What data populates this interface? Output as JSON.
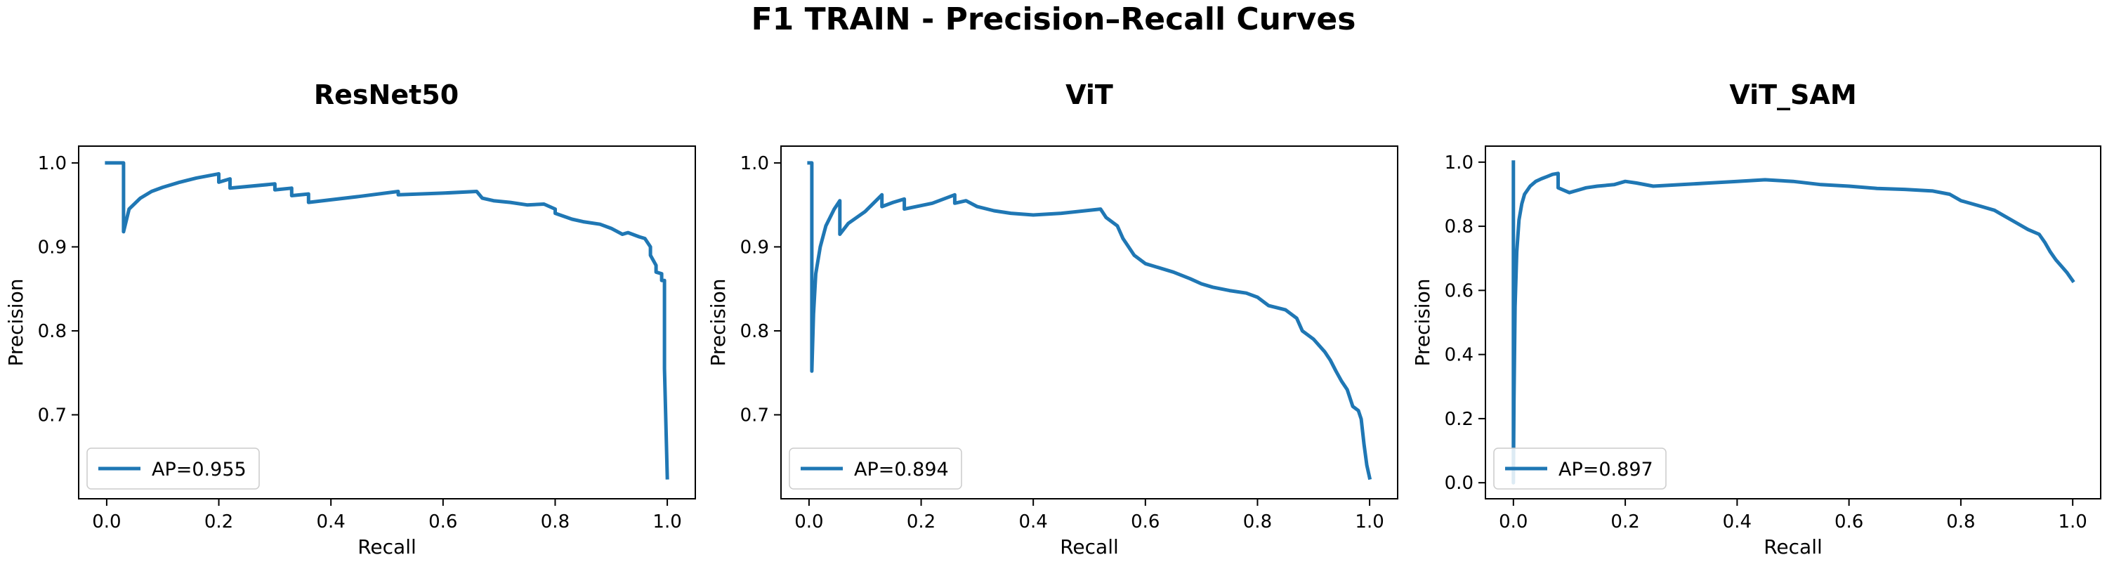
{
  "figure": {
    "title": "F1 TRAIN - Precision–Recall Curves"
  },
  "chart_data": [
    {
      "type": "line",
      "title": "ResNet50",
      "xlabel": "Recall",
      "ylabel": "Precision",
      "xlim": [
        -0.05,
        1.05
      ],
      "ylim": [
        0.6,
        1.02
      ],
      "xticks": [
        0.0,
        0.2,
        0.4,
        0.6,
        0.8,
        1.0
      ],
      "yticks": [
        0.7,
        0.8,
        0.9,
        1.0
      ],
      "grid": false,
      "legend_position": "lower-left",
      "series": [
        {
          "name": "AP=0.955",
          "color": "#1f77b4",
          "x": [
            0.0,
            0.03,
            0.03,
            0.04,
            0.06,
            0.08,
            0.1,
            0.13,
            0.16,
            0.2,
            0.2,
            0.22,
            0.22,
            0.3,
            0.3,
            0.33,
            0.33,
            0.36,
            0.36,
            0.45,
            0.52,
            0.52,
            0.6,
            0.66,
            0.67,
            0.69,
            0.72,
            0.75,
            0.78,
            0.8,
            0.8,
            0.83,
            0.85,
            0.88,
            0.9,
            0.92,
            0.93,
            0.95,
            0.96,
            0.97,
            0.97,
            0.98,
            0.98,
            0.99,
            0.99,
            0.995,
            0.995,
            1.0
          ],
          "y": [
            1.0,
            1.0,
            0.918,
            0.945,
            0.958,
            0.966,
            0.971,
            0.977,
            0.982,
            0.987,
            0.977,
            0.981,
            0.97,
            0.975,
            0.968,
            0.97,
            0.961,
            0.963,
            0.953,
            0.96,
            0.966,
            0.962,
            0.964,
            0.966,
            0.958,
            0.955,
            0.953,
            0.95,
            0.951,
            0.945,
            0.94,
            0.933,
            0.93,
            0.927,
            0.922,
            0.915,
            0.917,
            0.912,
            0.91,
            0.9,
            0.89,
            0.878,
            0.87,
            0.868,
            0.86,
            0.86,
            0.755,
            0.625
          ]
        }
      ]
    },
    {
      "type": "line",
      "title": "ViT",
      "xlabel": "Recall",
      "ylabel": "Precision",
      "xlim": [
        -0.05,
        1.05
      ],
      "ylim": [
        0.6,
        1.02
      ],
      "xticks": [
        0.0,
        0.2,
        0.4,
        0.6,
        0.8,
        1.0
      ],
      "yticks": [
        0.7,
        0.8,
        0.9,
        1.0
      ],
      "grid": false,
      "legend_position": "lower-left",
      "series": [
        {
          "name": "AP=0.894",
          "color": "#1f77b4",
          "x": [
            0.0,
            0.005,
            0.005,
            0.008,
            0.012,
            0.02,
            0.03,
            0.045,
            0.055,
            0.055,
            0.07,
            0.1,
            0.13,
            0.13,
            0.15,
            0.17,
            0.17,
            0.22,
            0.26,
            0.26,
            0.28,
            0.3,
            0.33,
            0.36,
            0.4,
            0.45,
            0.52,
            0.53,
            0.55,
            0.56,
            0.57,
            0.58,
            0.6,
            0.62,
            0.65,
            0.68,
            0.7,
            0.72,
            0.75,
            0.78,
            0.8,
            0.82,
            0.85,
            0.87,
            0.88,
            0.9,
            0.92,
            0.93,
            0.94,
            0.95,
            0.96,
            0.97,
            0.98,
            0.985,
            0.99,
            0.995,
            1.0
          ],
          "y": [
            1.0,
            1.0,
            0.752,
            0.82,
            0.868,
            0.9,
            0.925,
            0.945,
            0.955,
            0.915,
            0.928,
            0.942,
            0.962,
            0.948,
            0.953,
            0.957,
            0.945,
            0.952,
            0.962,
            0.952,
            0.955,
            0.948,
            0.943,
            0.94,
            0.938,
            0.94,
            0.945,
            0.935,
            0.925,
            0.91,
            0.9,
            0.89,
            0.88,
            0.876,
            0.87,
            0.862,
            0.856,
            0.852,
            0.848,
            0.845,
            0.84,
            0.83,
            0.825,
            0.815,
            0.8,
            0.79,
            0.775,
            0.765,
            0.752,
            0.74,
            0.73,
            0.71,
            0.705,
            0.695,
            0.665,
            0.64,
            0.625
          ]
        }
      ]
    },
    {
      "type": "line",
      "title": "ViT_SAM",
      "xlabel": "Recall",
      "ylabel": "Precision",
      "xlim": [
        -0.05,
        1.05
      ],
      "ylim": [
        -0.05,
        1.05
      ],
      "xticks": [
        0.0,
        0.2,
        0.4,
        0.6,
        0.8,
        1.0
      ],
      "yticks": [
        0.0,
        0.2,
        0.4,
        0.6,
        0.8,
        1.0
      ],
      "grid": false,
      "legend_position": "lower-left",
      "series": [
        {
          "name": "AP=0.897",
          "color": "#1f77b4",
          "x": [
            0.0,
            0.0,
            0.001,
            0.003,
            0.006,
            0.01,
            0.015,
            0.02,
            0.03,
            0.04,
            0.05,
            0.06,
            0.07,
            0.08,
            0.08,
            0.1,
            0.12,
            0.13,
            0.15,
            0.18,
            0.2,
            0.22,
            0.25,
            0.3,
            0.35,
            0.4,
            0.45,
            0.5,
            0.55,
            0.6,
            0.65,
            0.7,
            0.75,
            0.78,
            0.8,
            0.83,
            0.86,
            0.88,
            0.9,
            0.92,
            0.94,
            0.95,
            0.96,
            0.97,
            0.98,
            0.99,
            1.0
          ],
          "y": [
            1.0,
            0.0,
            0.25,
            0.55,
            0.72,
            0.82,
            0.87,
            0.9,
            0.925,
            0.94,
            0.948,
            0.955,
            0.962,
            0.965,
            0.92,
            0.905,
            0.915,
            0.92,
            0.925,
            0.93,
            0.94,
            0.935,
            0.925,
            0.93,
            0.935,
            0.94,
            0.945,
            0.94,
            0.93,
            0.925,
            0.918,
            0.915,
            0.91,
            0.9,
            0.88,
            0.865,
            0.85,
            0.83,
            0.81,
            0.79,
            0.775,
            0.75,
            0.72,
            0.695,
            0.675,
            0.655,
            0.63
          ]
        }
      ]
    }
  ]
}
